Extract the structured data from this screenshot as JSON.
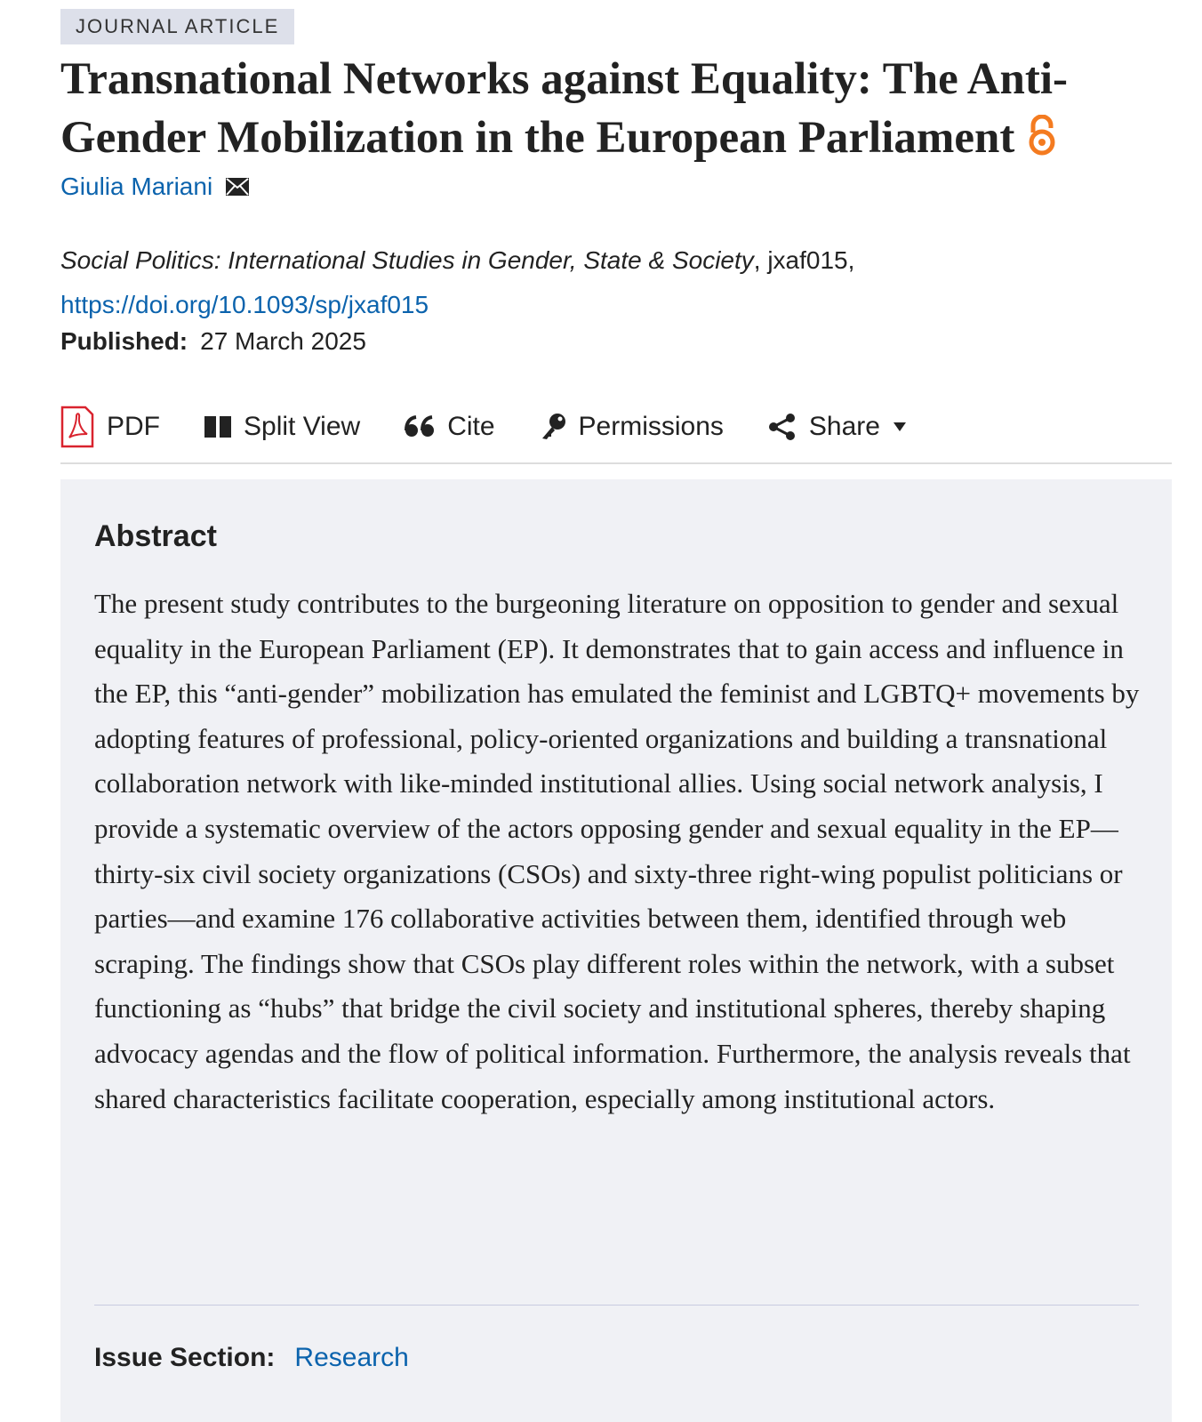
{
  "badge": "JOURNAL ARTICLE",
  "title": "Transnational Networks against Equality: The Anti-Gender Mobilization in the European Parliament",
  "author": "Giulia Mariani",
  "citation": {
    "journal": "Social Politics: International Studies in Gender, State & Society",
    "suffix": ", jxaf015,",
    "doi": "https://doi.org/10.1093/sp/jxaf015"
  },
  "published": {
    "label": "Published:",
    "date": "27 March 2025"
  },
  "toolbar": [
    "PDF",
    "Split View",
    "Cite",
    "Permissions",
    "Share"
  ],
  "abstract": {
    "heading": "Abstract",
    "text": "The present study contributes to the burgeoning literature on opposition to gender and sexual equality in the European Parliament (EP). It demonstrates that to gain access and influence in the EP, this “anti-gender” mobilization has emulated the feminist and LGBTQ+ movements by adopting features of professional, policy-oriented organizations and building a transnational collaboration network with like-minded institutional allies. Using social network analysis, I provide a systematic overview of the actors opposing gender and sexual equality in the EP—thirty-six civil society organizations (CSOs) and sixty-three right-wing populist politicians or parties—and examine 176 collaborative activities between them, identified through web scraping. The findings show that CSOs play different roles within the network, with a subset functioning as “hubs” that bridge the civil society and institutional spheres, thereby shaping advocacy agendas and the flow of political information. Furthermore, the analysis reveals that shared characteristics facilitate cooperation, especially among institutional actors."
  },
  "issue_section": {
    "label": "Issue Section:",
    "value": "Research"
  }
}
